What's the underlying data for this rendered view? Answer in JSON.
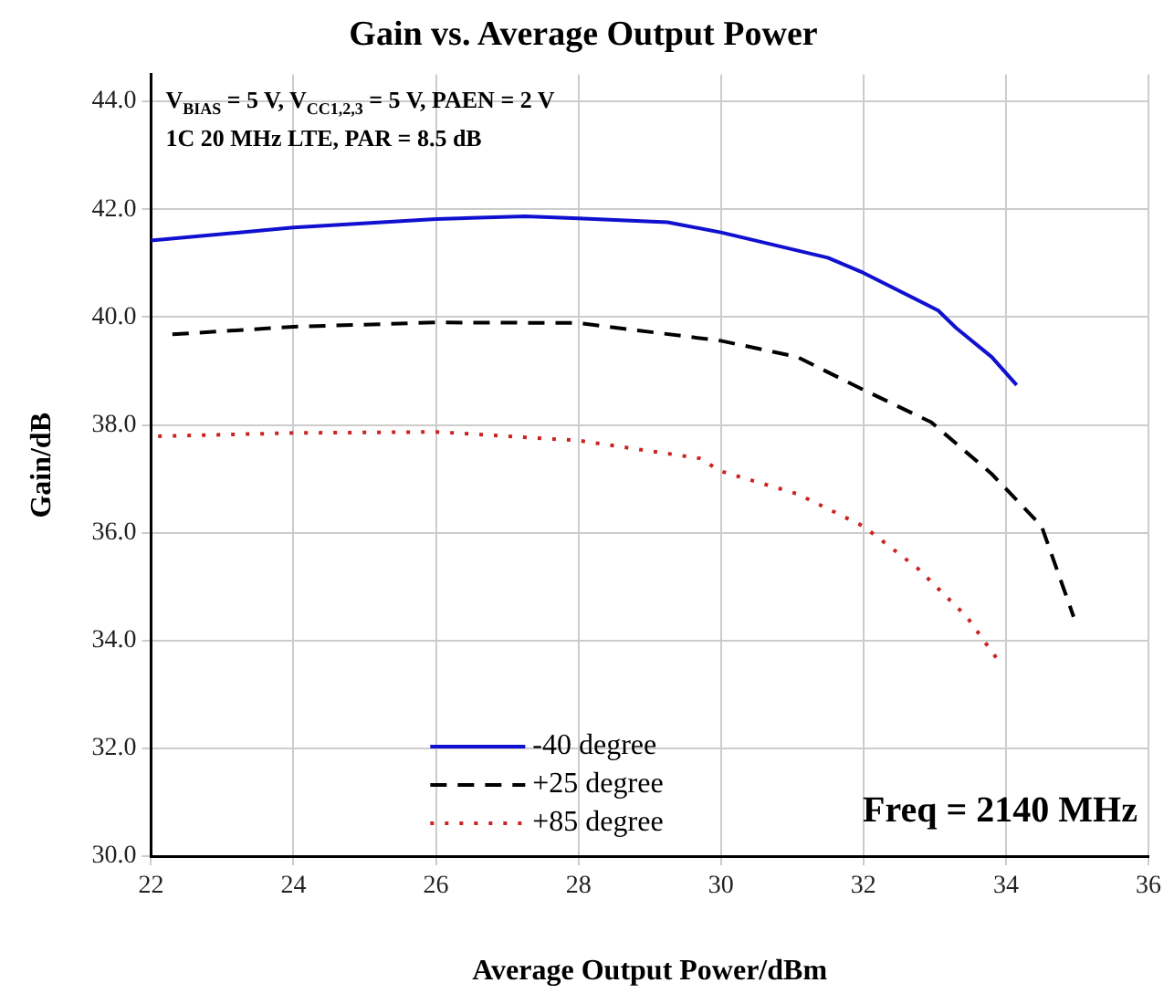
{
  "chart_data": {
    "type": "line",
    "title": "Gain vs. Average Output Power",
    "xlabel": "Average Output Power/dBm",
    "ylabel": "Gain/dB",
    "annotations": [
      "V$_{BIAS}$ = 5 V, V$_{CC1,2,3}$ = 5 V, PAEN = 2 V",
      "1C 20 MHz LTE, PAR = 8.5 dB",
      "Freq = 2140 MHz"
    ],
    "xlim": [
      22,
      36
    ],
    "xticks": [
      22,
      24,
      26,
      28,
      30,
      32,
      34,
      36
    ],
    "ylim": [
      30,
      44.5
    ],
    "yticks": [
      {
        "value": 30,
        "label": "30.0"
      },
      {
        "value": 32,
        "label": "32.0"
      },
      {
        "value": 34,
        "label": "34.0"
      },
      {
        "value": 36,
        "label": "36.0"
      },
      {
        "value": 38,
        "label": "38.0"
      },
      {
        "value": 40,
        "label": "40.0"
      },
      {
        "value": 42,
        "label": "42.0"
      },
      {
        "value": 44,
        "label": "44.0"
      }
    ],
    "grid": true,
    "legend": "bottom",
    "marker": "none",
    "series": [
      {
        "name": "-40 degree",
        "color": "#1010d0",
        "line_style": "solid",
        "x": [
          22,
          24,
          26,
          27.25,
          28,
          29.25,
          30,
          31.5,
          32,
          33.05,
          33.3,
          33.8,
          34.15
        ],
        "values": [
          41.42,
          41.66,
          41.82,
          41.87,
          41.83,
          41.76,
          41.57,
          41.1,
          40.82,
          40.12,
          39.8,
          39.26,
          38.74
        ]
      },
      {
        "name": "+25 degree",
        "color": "#000000",
        "line_style": "dashed",
        "x": [
          22.3,
          24,
          26,
          28,
          30,
          31.07,
          32,
          32.95,
          33.8,
          34.5,
          34.95
        ],
        "values": [
          39.68,
          39.82,
          39.9,
          39.89,
          39.56,
          39.26,
          38.65,
          38.05,
          37.09,
          36.12,
          34.44
        ]
      },
      {
        "name": "+85 degree",
        "color": "#cc2222",
        "line_style": "dotted",
        "x": [
          22.1,
          24,
          26,
          28,
          29.7,
          30,
          31.07,
          32,
          32.76,
          33.45,
          33.88
        ],
        "values": [
          37.79,
          37.85,
          37.87,
          37.71,
          37.38,
          37.14,
          36.72,
          36.12,
          35.34,
          34.44,
          33.65
        ]
      }
    ]
  }
}
